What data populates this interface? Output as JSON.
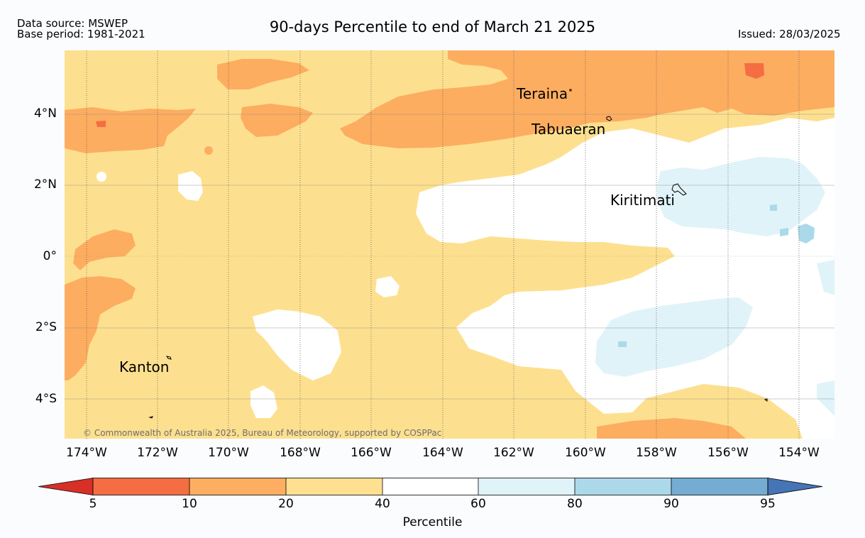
{
  "header": {
    "source": "Data source: MSWEP",
    "base_period": "Base period: 1981-2021",
    "title": "90-days Percentile to end of March 21 2025",
    "issued": "Issued: 28/03/2025"
  },
  "places": {
    "teraina": "Teraina",
    "tabuaeran": "Tabuaeran",
    "kiritimati": "Kiritimati",
    "kanton": "Kanton"
  },
  "copyright": "© Commonwealth of Australia 2025, Bureau of Meteorology, supported by COSPPac",
  "axes": {
    "lat": [
      "4°N",
      "2°N",
      "0°",
      "2°S",
      "4°S"
    ],
    "lon": [
      "174°W",
      "172°W",
      "170°W",
      "168°W",
      "166°W",
      "164°W",
      "162°W",
      "160°W",
      "158°W",
      "156°W",
      "154°W"
    ]
  },
  "colorbar": {
    "title": "Percentile",
    "ticks": [
      "5",
      "10",
      "20",
      "40",
      "60",
      "80",
      "90",
      "95"
    ],
    "colors": {
      "below5": "#d73027",
      "p5_10": "#f46d43",
      "p10_20": "#fdae61",
      "p20_40": "#fee090",
      "p40_60": "#ffffff",
      "p60_80": "#e0f3f8",
      "p80_90": "#abd9e9",
      "p90_95": "#74add1",
      "above95": "#4575b4"
    }
  }
}
